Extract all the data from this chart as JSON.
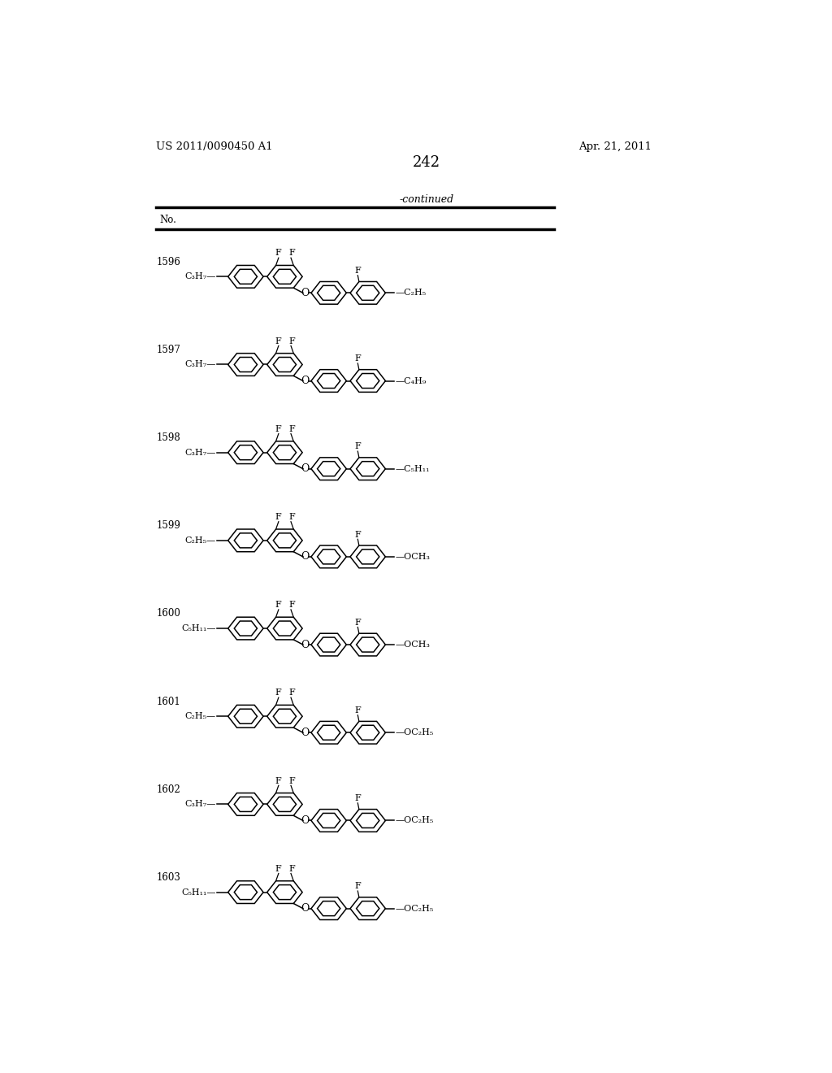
{
  "page_number": "242",
  "patent_number": "US 2011/0090450 A1",
  "patent_date": "Apr. 21, 2011",
  "continued_label": "-continued",
  "table_header": "No.",
  "compounds": [
    {
      "number": "1596",
      "left_chain": "C₃H₇",
      "right_chain": "C₂H₅"
    },
    {
      "number": "1597",
      "left_chain": "C₃H₇",
      "right_chain": "C₄H₉"
    },
    {
      "number": "1598",
      "left_chain": "C₃H₇",
      "right_chain": "C₅H₁₁"
    },
    {
      "number": "1599",
      "left_chain": "C₂H₅",
      "right_chain": "OCH₃"
    },
    {
      "number": "1600",
      "left_chain": "C₅H₁₁",
      "right_chain": "OCH₃"
    },
    {
      "number": "1601",
      "left_chain": "C₂H₅",
      "right_chain": "OC₂H₅"
    },
    {
      "number": "1602",
      "left_chain": "C₃H₇",
      "right_chain": "OC₂H₅"
    },
    {
      "number": "1603",
      "left_chain": "C₅H₁₁",
      "right_chain": "OC₂H₅"
    }
  ]
}
